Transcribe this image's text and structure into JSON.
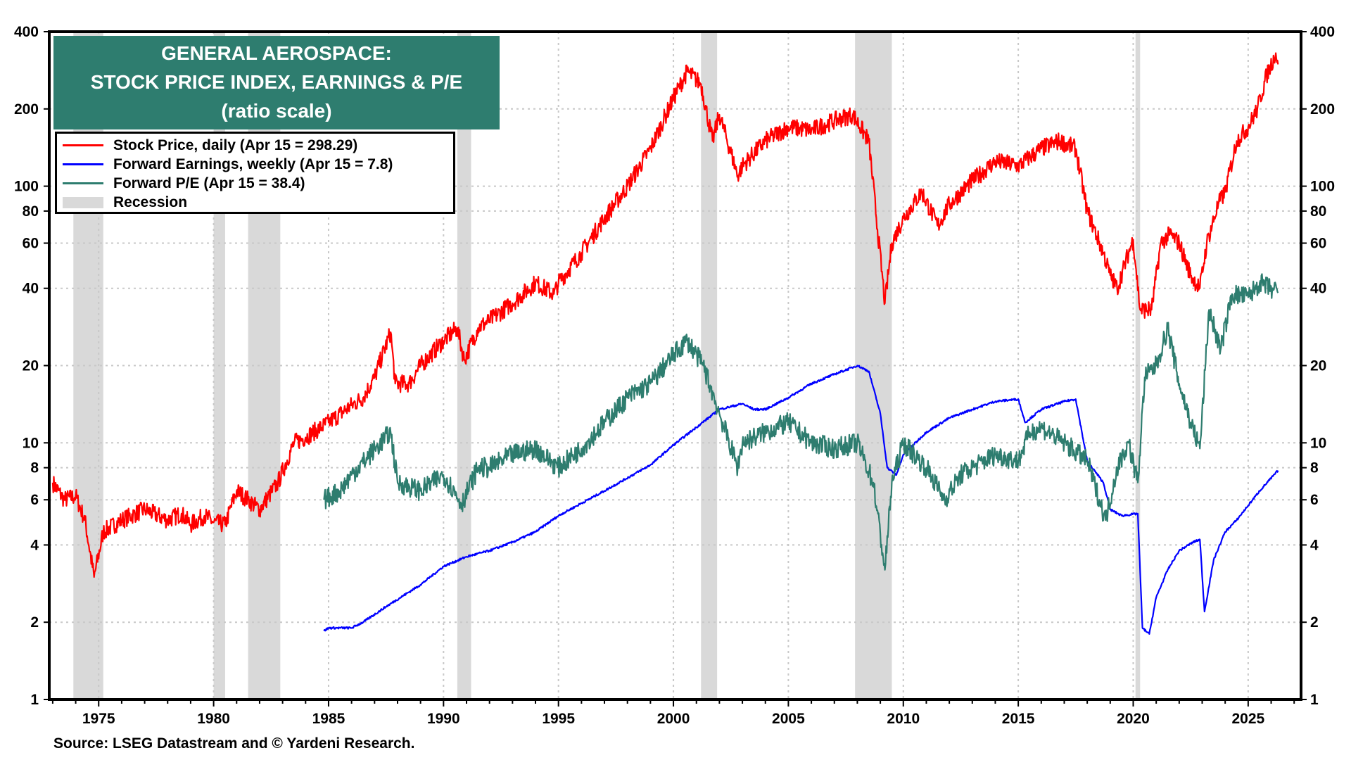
{
  "title": {
    "line1": "GENERAL AEROSPACE:",
    "line2": "STOCK PRICE INDEX, EARNINGS & P/E",
    "line3": "(ratio scale)"
  },
  "source": "Source: LSEG Datastream and © Yardeni Research.",
  "chart_data": {
    "type": "line",
    "y_scale": "log",
    "ylim": [
      1,
      400
    ],
    "xlim": [
      1972.85,
      2027.3
    ],
    "grid": true,
    "legend_placement": "top-left",
    "y_ticks": [
      1,
      2,
      4,
      6,
      8,
      10,
      20,
      40,
      60,
      80,
      100,
      200,
      400
    ],
    "x_ticks": [
      1975,
      1980,
      1985,
      1990,
      1995,
      2000,
      2005,
      2010,
      2015,
      2020,
      2025
    ],
    "legend": [
      {
        "label": "Stock Price, daily (Apr 15 = 298.29)",
        "color": "#ff0000"
      },
      {
        "label": "Forward Earnings, weekly (Apr 15 = 7.8)",
        "color": "#0000ff"
      },
      {
        "label": "Forward P/E (Apr 15 = 38.4)",
        "color": "#2e7d6f"
      },
      {
        "label": "Recession",
        "color": "#d9d9d9"
      }
    ],
    "recessions": [
      [
        1973.9,
        1975.2
      ],
      [
        1980.0,
        1980.5
      ],
      [
        1981.5,
        1982.9
      ],
      [
        1990.6,
        1991.2
      ],
      [
        2001.2,
        2001.9
      ],
      [
        2007.9,
        2009.5
      ],
      [
        2020.1,
        2020.3
      ]
    ],
    "series": [
      {
        "name": "Stock Price",
        "color": "#ff0000",
        "points": [
          [
            1973.0,
            7
          ],
          [
            1973.5,
            6
          ],
          [
            1974.0,
            6.2
          ],
          [
            1974.4,
            5
          ],
          [
            1974.8,
            3
          ],
          [
            1975.2,
            4.5
          ],
          [
            1976,
            5
          ],
          [
            1977,
            5.5
          ],
          [
            1978,
            5
          ],
          [
            1978.6,
            5.3
          ],
          [
            1979,
            4.8
          ],
          [
            1979.6,
            5.2
          ],
          [
            1980,
            4.9
          ],
          [
            1980.5,
            4.8
          ],
          [
            1981,
            6.5
          ],
          [
            1981.5,
            6
          ],
          [
            1982,
            5.5
          ],
          [
            1982.8,
            7
          ],
          [
            1983.5,
            10
          ],
          [
            1984,
            10.5
          ],
          [
            1985,
            12
          ],
          [
            1986,
            14
          ],
          [
            1986.5,
            15
          ],
          [
            1987,
            18
          ],
          [
            1987.7,
            27
          ],
          [
            1987.9,
            17
          ],
          [
            1988.5,
            17
          ],
          [
            1989,
            20
          ],
          [
            1990,
            25
          ],
          [
            1990.6,
            28
          ],
          [
            1990.9,
            21
          ],
          [
            1991.5,
            28
          ],
          [
            1992,
            30
          ],
          [
            1993,
            35
          ],
          [
            1994,
            42
          ],
          [
            1994.8,
            38
          ],
          [
            1995,
            42
          ],
          [
            1996,
            55
          ],
          [
            1997,
            75
          ],
          [
            1998,
            100
          ],
          [
            1999,
            140
          ],
          [
            2000,
            220
          ],
          [
            2000.6,
            280
          ],
          [
            2001.2,
            250
          ],
          [
            2001.7,
            150
          ],
          [
            2002,
            190
          ],
          [
            2002.8,
            110
          ],
          [
            2003,
            120
          ],
          [
            2004,
            150
          ],
          [
            2005,
            170
          ],
          [
            2006,
            165
          ],
          [
            2007,
            180
          ],
          [
            2007.8,
            190
          ],
          [
            2008.5,
            150
          ],
          [
            2009.2,
            35
          ],
          [
            2009.5,
            60
          ],
          [
            2010,
            75
          ],
          [
            2010.8,
            95
          ],
          [
            2011.5,
            70
          ],
          [
            2012,
            85
          ],
          [
            2013,
            105
          ],
          [
            2014,
            125
          ],
          [
            2015,
            120
          ],
          [
            2016,
            140
          ],
          [
            2016.8,
            150
          ],
          [
            2017.5,
            140
          ],
          [
            2018,
            80
          ],
          [
            2018.7,
            55
          ],
          [
            2019,
            45
          ],
          [
            2019.3,
            40
          ],
          [
            2019.8,
            55
          ],
          [
            2020.0,
            62
          ],
          [
            2020.3,
            33
          ],
          [
            2020.8,
            33
          ],
          [
            2021.2,
            60
          ],
          [
            2021.6,
            65
          ],
          [
            2022.0,
            60
          ],
          [
            2022.5,
            45
          ],
          [
            2022.9,
            40
          ],
          [
            2023.2,
            60
          ],
          [
            2023.7,
            85
          ],
          [
            2024,
            95
          ],
          [
            2024.5,
            150
          ],
          [
            2025,
            170
          ],
          [
            2025.4,
            200
          ],
          [
            2025.8,
            270
          ],
          [
            2026.2,
            330
          ],
          [
            2026.3,
            298.29
          ]
        ]
      },
      {
        "name": "Forward Earnings",
        "color": "#0000ff",
        "points": [
          [
            1984.8,
            1.85
          ],
          [
            1985,
            1.9
          ],
          [
            1986,
            1.9
          ],
          [
            1986.5,
            2.0
          ],
          [
            1987.5,
            2.3
          ],
          [
            1989,
            2.8
          ],
          [
            1990,
            3.3
          ],
          [
            1991,
            3.6
          ],
          [
            1992,
            3.8
          ],
          [
            1993,
            4.1
          ],
          [
            1994,
            4.5
          ],
          [
            1995,
            5.2
          ],
          [
            1997,
            6.5
          ],
          [
            1999,
            8.2
          ],
          [
            2000,
            9.8
          ],
          [
            2001,
            11.5
          ],
          [
            2002,
            13.5
          ],
          [
            2003,
            14.2
          ],
          [
            2003.5,
            13.5
          ],
          [
            2004,
            13.5
          ],
          [
            2005,
            15
          ],
          [
            2006,
            17
          ],
          [
            2007,
            18.5
          ],
          [
            2008,
            20
          ],
          [
            2008.5,
            19
          ],
          [
            2009,
            13
          ],
          [
            2009.3,
            8
          ],
          [
            2009.7,
            7.5
          ],
          [
            2010,
            9
          ],
          [
            2011,
            11
          ],
          [
            2012,
            12.5
          ],
          [
            2013,
            13.5
          ],
          [
            2014,
            14.5
          ],
          [
            2015,
            14.8
          ],
          [
            2015.3,
            12
          ],
          [
            2016,
            13.5
          ],
          [
            2017,
            14.5
          ],
          [
            2017.5,
            14.8
          ],
          [
            2018,
            8.5
          ],
          [
            2018.7,
            7
          ],
          [
            2019,
            5.5
          ],
          [
            2019.5,
            5.2
          ],
          [
            2020.2,
            5.3
          ],
          [
            2020.4,
            1.9
          ],
          [
            2020.7,
            1.8
          ],
          [
            2021,
            2.5
          ],
          [
            2021.5,
            3.2
          ],
          [
            2022,
            3.8
          ],
          [
            2022.6,
            4.1
          ],
          [
            2022.9,
            4.2
          ],
          [
            2023.1,
            2.2
          ],
          [
            2023.5,
            3.5
          ],
          [
            2024,
            4.5
          ],
          [
            2024.5,
            5
          ],
          [
            2025,
            5.7
          ],
          [
            2025.5,
            6.5
          ],
          [
            2026.3,
            7.8
          ]
        ]
      },
      {
        "name": "Forward P/E",
        "color": "#2e7d6f",
        "points": [
          [
            1984.8,
            6
          ],
          [
            1985.5,
            6.5
          ],
          [
            1986,
            7.5
          ],
          [
            1987.7,
            11
          ],
          [
            1988,
            7
          ],
          [
            1989,
            6.5
          ],
          [
            1990,
            7.5
          ],
          [
            1990.8,
            5.8
          ],
          [
            1991.5,
            8
          ],
          [
            1992,
            8
          ],
          [
            1993,
            9
          ],
          [
            1994,
            9.5
          ],
          [
            1995,
            8
          ],
          [
            1996,
            9.5
          ],
          [
            1997,
            12
          ],
          [
            1998,
            15
          ],
          [
            1999,
            17
          ],
          [
            2000,
            22
          ],
          [
            2000.6,
            25
          ],
          [
            2001.3,
            20
          ],
          [
            2002,
            13
          ],
          [
            2002.8,
            8
          ],
          [
            2003,
            10
          ],
          [
            2004,
            11
          ],
          [
            2005,
            12
          ],
          [
            2006,
            10
          ],
          [
            2007,
            9.5
          ],
          [
            2008,
            10
          ],
          [
            2008.7,
            7
          ],
          [
            2009.2,
            3.2
          ],
          [
            2009.5,
            7
          ],
          [
            2010,
            10
          ],
          [
            2011,
            8
          ],
          [
            2011.8,
            6
          ],
          [
            2012.5,
            7.5
          ],
          [
            2013,
            8
          ],
          [
            2014,
            9
          ],
          [
            2015,
            8.5
          ],
          [
            2015.5,
            11
          ],
          [
            2016,
            11.5
          ],
          [
            2017,
            10
          ],
          [
            2018,
            8.5
          ],
          [
            2018.8,
            5
          ],
          [
            2019.3,
            8
          ],
          [
            2019.8,
            10
          ],
          [
            2020.2,
            7
          ],
          [
            2020.5,
            18
          ],
          [
            2021,
            20
          ],
          [
            2021.5,
            28
          ],
          [
            2022,
            17
          ],
          [
            2022.5,
            12
          ],
          [
            2022.9,
            9.5
          ],
          [
            2023.3,
            33
          ],
          [
            2023.8,
            23
          ],
          [
            2024.3,
            38
          ],
          [
            2025,
            37
          ],
          [
            2025.5,
            42
          ],
          [
            2026.3,
            38.4
          ]
        ]
      }
    ]
  }
}
